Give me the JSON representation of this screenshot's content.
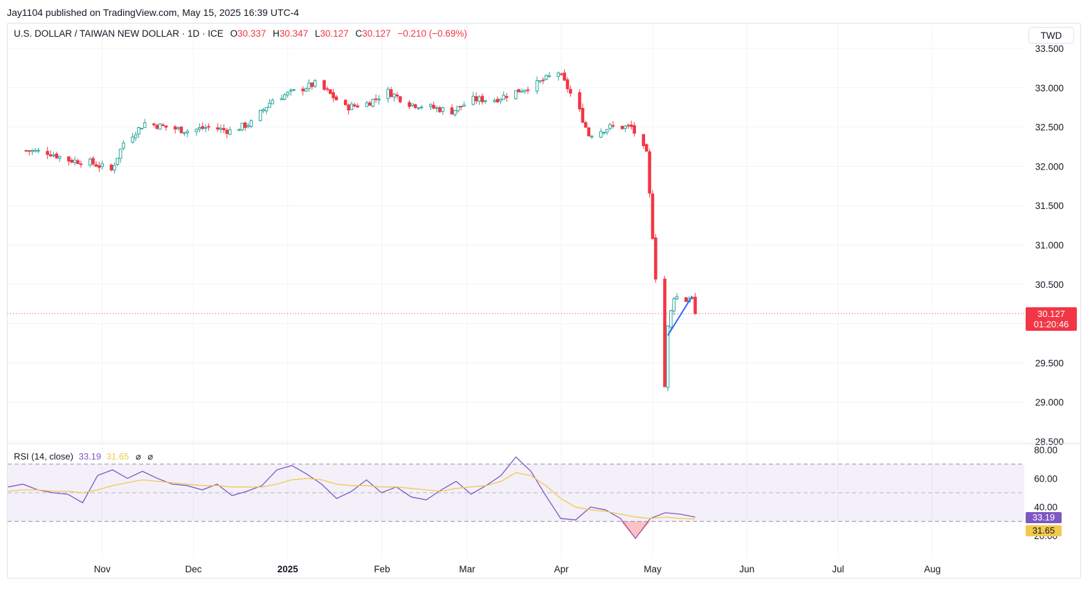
{
  "header": {
    "published": "Jay1104 published on TradingView.com, May 15, 2025 16:39 UTC-4"
  },
  "legend": {
    "symbol": "U.S. DOLLAR / TAIWAN NEW DOLLAR · 1D · ICE",
    "o_label": "O",
    "o_value": "30.337",
    "h_label": "H",
    "h_value": "30.347",
    "l_label": "L",
    "l_value": "30.127",
    "c_label": "C",
    "c_value": "30.127",
    "change": "−0.210 (−0.69%)"
  },
  "currency_button": "TWD",
  "price_tag": {
    "price": "30.127",
    "countdown": "01:20:46"
  },
  "rsi": {
    "label": "RSI (14, close)",
    "rsi_value": "33.19",
    "ma_value": "31.65",
    "icon1": "⌀",
    "icon2": "⌀",
    "ticks": [
      "80.00",
      "60.00",
      "40.00",
      "20.00"
    ]
  },
  "colors": {
    "up": "#26a69a",
    "down": "#f23645",
    "rsi": "#7e57c2",
    "rsi_ma": "#f2c94c",
    "trendline": "#2962ff"
  },
  "chart_data": [
    {
      "type": "candlestick",
      "title": "U.S. DOLLAR / TAIWAN NEW DOLLAR · 1D · ICE",
      "x_ticks": [
        "Nov",
        "Dec",
        "2025",
        "Feb",
        "Mar",
        "Apr",
        "May",
        "Jun",
        "Jul",
        "Aug"
      ],
      "y_ticks": [
        "33.500",
        "33.000",
        "32.500",
        "32.000",
        "31.500",
        "31.000",
        "30.500",
        "30.000",
        "29.500",
        "29.000",
        "28.500"
      ],
      "ylim": [
        28.5,
        33.5
      ],
      "last_price": 30.127,
      "keypoints_close": [
        {
          "date": "2024-10-07",
          "close": 32.2
        },
        {
          "date": "2024-10-14",
          "close": 32.18
        },
        {
          "date": "2024-10-21",
          "close": 32.08
        },
        {
          "date": "2024-10-28",
          "close": 32.05
        },
        {
          "date": "2024-11-04",
          "close": 31.95
        },
        {
          "date": "2024-11-08",
          "close": 32.3
        },
        {
          "date": "2024-11-15",
          "close": 32.55
        },
        {
          "date": "2024-11-22",
          "close": 32.5
        },
        {
          "date": "2024-11-29",
          "close": 32.45
        },
        {
          "date": "2024-12-06",
          "close": 32.5
        },
        {
          "date": "2024-12-13",
          "close": 32.45
        },
        {
          "date": "2024-12-20",
          "close": 32.55
        },
        {
          "date": "2024-12-27",
          "close": 32.85
        },
        {
          "date": "2025-01-03",
          "close": 32.95
        },
        {
          "date": "2025-01-10",
          "close": 33.05
        },
        {
          "date": "2025-01-14",
          "close": 32.95
        },
        {
          "date": "2025-01-20",
          "close": 32.75
        },
        {
          "date": "2025-01-27",
          "close": 32.8
        },
        {
          "date": "2025-02-03",
          "close": 32.95
        },
        {
          "date": "2025-02-10",
          "close": 32.8
        },
        {
          "date": "2025-02-17",
          "close": 32.75
        },
        {
          "date": "2025-02-24",
          "close": 32.7
        },
        {
          "date": "2025-03-03",
          "close": 32.85
        },
        {
          "date": "2025-03-10",
          "close": 32.85
        },
        {
          "date": "2025-03-17",
          "close": 32.95
        },
        {
          "date": "2025-03-24",
          "close": 33.05
        },
        {
          "date": "2025-03-31",
          "close": 33.2
        },
        {
          "date": "2025-04-03",
          "close": 33.0
        },
        {
          "date": "2025-04-07",
          "close": 32.7
        },
        {
          "date": "2025-04-10",
          "close": 32.4
        },
        {
          "date": "2025-04-17",
          "close": 32.5
        },
        {
          "date": "2025-04-24",
          "close": 32.5
        },
        {
          "date": "2025-04-29",
          "close": 32.15
        },
        {
          "date": "2025-05-02",
          "close": 30.6
        },
        {
          "date": "2025-05-05",
          "close": 29.2
        },
        {
          "date": "2025-05-06",
          "close": 29.95
        },
        {
          "date": "2025-05-08",
          "close": 30.35
        },
        {
          "date": "2025-05-12",
          "close": 30.3
        },
        {
          "date": "2025-05-14",
          "close": 30.35
        },
        {
          "date": "2025-05-15",
          "close": 30.127
        }
      ]
    },
    {
      "type": "line",
      "title": "RSI (14, close)",
      "y_ticks": [
        "80.00",
        "60.00",
        "40.00",
        "20.00"
      ],
      "ylim": [
        10,
        85
      ],
      "levels": [
        70,
        50,
        30
      ],
      "series": [
        {
          "name": "RSI",
          "values": [
            54,
            56,
            52,
            50,
            49,
            43,
            62,
            66,
            60,
            65,
            60,
            56,
            55,
            52,
            56,
            48,
            51,
            55,
            66,
            69,
            63,
            56,
            46,
            51,
            59,
            50,
            54,
            47,
            45,
            52,
            58,
            49,
            55,
            62,
            75,
            65,
            48,
            32,
            31,
            40,
            38,
            32,
            18,
            32,
            36,
            35,
            33
          ]
        },
        {
          "name": "MA",
          "values": [
            51,
            52,
            52,
            51,
            51,
            50,
            52,
            55,
            57,
            59,
            58,
            57,
            56,
            55,
            55,
            54,
            54,
            54,
            56,
            59,
            60,
            59,
            56,
            55,
            55,
            54,
            54,
            53,
            52,
            51,
            53,
            54,
            55,
            58,
            64,
            62,
            55,
            46,
            40,
            38,
            37,
            35,
            33,
            32,
            33,
            32,
            31.65
          ]
        }
      ]
    }
  ]
}
